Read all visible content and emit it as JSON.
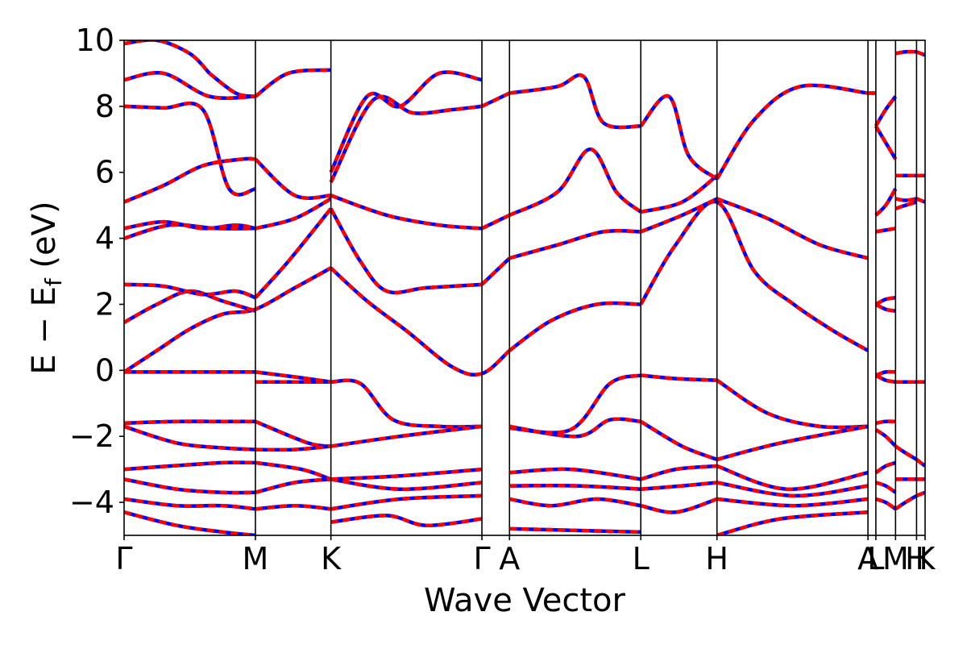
{
  "chart_data": {
    "type": "line",
    "title": "",
    "xlabel": "Wave Vector",
    "ylabel": "E − E",
    "ylabel_sub": "f",
    "ylabel_unit": " (eV)",
    "ylim": [
      -5,
      10
    ],
    "xlim": [
      0,
      12.2
    ],
    "yticks": [
      -4,
      -2,
      0,
      2,
      4,
      6,
      8,
      10
    ],
    "ytick_labels": [
      "−4",
      "−2",
      "0",
      "2",
      "4",
      "6",
      "8",
      "10"
    ],
    "kpoints": [
      {
        "label": "Γ",
        "x": 0.0
      },
      {
        "label": "M",
        "x": 2.0
      },
      {
        "label": "K",
        "x": 3.15
      },
      {
        "label": "Γ",
        "x": 5.45
      },
      {
        "label": "A",
        "x": 5.87
      },
      {
        "label": "L",
        "x": 7.87
      },
      {
        "label": "H",
        "x": 9.03
      },
      {
        "label": "A",
        "x": 11.33
      },
      {
        "label": "L",
        "x": 11.45
      },
      {
        "label": "M",
        "x": 11.75
      },
      {
        "label": "H",
        "x": 12.07
      },
      {
        "label": "K",
        "x": 12.2
      }
    ],
    "series_styles": [
      {
        "color": "#0000ff",
        "style": "solid"
      },
      {
        "color": "#ff0000",
        "style": "dashed"
      }
    ],
    "bands": [
      {
        "x": [
          0,
          0.5,
          1,
          1.5,
          2,
          2.6,
          3.15
        ],
        "y": [
          -0.05,
          0.6,
          1.25,
          1.7,
          1.85,
          2.5,
          3.1
        ]
      },
      {
        "x": [
          3.15,
          3.7,
          4.3,
          5.0,
          5.45,
          5.87
        ],
        "y": [
          3.1,
          2.1,
          1.2,
          0.1,
          -0.1,
          0.6
        ]
      },
      {
        "x": [
          5.87,
          6.5,
          7.2,
          7.87
        ],
        "y": [
          0.6,
          1.5,
          2.0,
          2.0
        ]
      },
      {
        "x": [
          7.87,
          8.4,
          9.03,
          9.6,
          10.2,
          10.8,
          11.33
        ],
        "y": [
          2.0,
          3.8,
          5.1,
          3.0,
          2.0,
          1.2,
          0.6
        ]
      },
      {
        "x": [
          0,
          0.5,
          1,
          1.5,
          2
        ],
        "y": [
          1.45,
          2.0,
          2.4,
          2.1,
          1.8
        ]
      },
      {
        "x": [
          0,
          0.6,
          1.2,
          1.7,
          2
        ],
        "y": [
          2.6,
          2.55,
          2.3,
          2.4,
          2.2
        ]
      },
      {
        "x": [
          2,
          2.5,
          3.15
        ],
        "y": [
          2.2,
          3.3,
          4.9
        ]
      },
      {
        "x": [
          3.15,
          3.6,
          4.0,
          4.6,
          5.45
        ],
        "y": [
          4.9,
          3.3,
          2.4,
          2.5,
          2.6
        ]
      },
      {
        "x": [
          5.45,
          5.87
        ],
        "y": [
          2.6,
          3.4
        ]
      },
      {
        "x": [
          5.87,
          6.6,
          7.3,
          7.87
        ],
        "y": [
          3.4,
          3.8,
          4.2,
          4.2
        ]
      },
      {
        "x": [
          7.87,
          8.5,
          9.03
        ],
        "y": [
          4.2,
          4.7,
          5.2
        ]
      },
      {
        "x": [
          9.03,
          9.8,
          10.6,
          11.33
        ],
        "y": [
          5.2,
          4.6,
          3.8,
          3.4
        ]
      },
      {
        "x": [
          0,
          0.7,
          1.4,
          2
        ],
        "y": [
          4.0,
          4.4,
          4.3,
          4.3
        ]
      },
      {
        "x": [
          0,
          0.6,
          1.2,
          1.7,
          2
        ],
        "y": [
          4.3,
          4.5,
          4.3,
          4.4,
          4.3
        ]
      },
      {
        "x": [
          2,
          2.6,
          3.15
        ],
        "y": [
          4.3,
          4.6,
          5.2
        ]
      },
      {
        "x": [
          0,
          0.6,
          1.2,
          1.8,
          2
        ],
        "y": [
          5.1,
          5.6,
          6.2,
          6.4,
          6.4
        ]
      },
      {
        "x": [
          2,
          2.6,
          3.15
        ],
        "y": [
          6.4,
          5.3,
          5.3
        ]
      },
      {
        "x": [
          3.15,
          4.0,
          4.8,
          5.45
        ],
        "y": [
          5.3,
          4.7,
          4.4,
          4.3
        ]
      },
      {
        "x": [
          5.45,
          5.87
        ],
        "y": [
          4.3,
          4.7
        ]
      },
      {
        "x": [
          5.87,
          6.6,
          7.1,
          7.5,
          7.87
        ],
        "y": [
          4.7,
          5.4,
          6.7,
          5.4,
          4.8
        ]
      },
      {
        "x": [
          7.87,
          8.5,
          9.03
        ],
        "y": [
          4.8,
          5.1,
          5.9
        ]
      },
      {
        "x": [
          0,
          0.6,
          1.2,
          1.6,
          2
        ],
        "y": [
          8.0,
          7.95,
          7.9,
          5.5,
          5.5
        ]
      },
      {
        "x": [
          0,
          0.6,
          1.3,
          2
        ],
        "y": [
          8.8,
          9.0,
          8.3,
          8.3
        ]
      },
      {
        "x": [
          2,
          2.5,
          3.15
        ],
        "y": [
          8.3,
          9.0,
          9.1
        ]
      },
      {
        "x": [
          3.15,
          3.8,
          4.4,
          5.0,
          5.45
        ],
        "y": [
          5.7,
          8.2,
          7.8,
          7.9,
          8.0
        ]
      },
      {
        "x": [
          3.15,
          3.7,
          4.2,
          4.8,
          5.45
        ],
        "y": [
          6.0,
          8.3,
          8.0,
          9.0,
          8.8
        ]
      },
      {
        "x": [
          5.45,
          5.87
        ],
        "y": [
          8.0,
          8.4
        ]
      },
      {
        "x": [
          5.87,
          6.6,
          7.0,
          7.3,
          7.87
        ],
        "y": [
          8.4,
          8.6,
          8.9,
          7.5,
          7.4
        ]
      },
      {
        "x": [
          7.87,
          8.3,
          8.6,
          9.03
        ],
        "y": [
          7.4,
          8.3,
          6.5,
          5.8
        ]
      },
      {
        "x": [
          9.03,
          9.6,
          10.3,
          11.33
        ],
        "y": [
          5.8,
          7.6,
          8.6,
          8.4
        ]
      },
      {
        "x": [
          0,
          0.5,
          1.0,
          1.3
        ],
        "y": [
          9.9,
          10.0,
          9.6,
          9.0
        ]
      },
      {
        "x": [
          1.3,
          1.7,
          2.0
        ],
        "y": [
          9.0,
          8.4,
          8.3
        ]
      },
      {
        "x": [
          0,
          0.6,
          1.2,
          1.6,
          2
        ],
        "y": [
          -0.05,
          -0.05,
          -0.05,
          -0.05,
          -0.05
        ]
      },
      {
        "x": [
          2,
          2.6,
          3.15
        ],
        "y": [
          -0.05,
          -0.2,
          -0.35
        ]
      },
      {
        "x": [
          2,
          2.6,
          3.15
        ],
        "y": [
          -0.35,
          -0.35,
          -0.35
        ]
      },
      {
        "x": [
          3.15,
          3.6,
          4.1,
          4.8,
          5.45
        ],
        "y": [
          -0.35,
          -0.4,
          -1.5,
          -1.7,
          -1.7
        ]
      },
      {
        "x": [
          5.87,
          6.8,
          7.4,
          7.87
        ],
        "y": [
          -1.75,
          -1.8,
          -0.4,
          -0.15
        ]
      },
      {
        "x": [
          7.87,
          8.4,
          9.03
        ],
        "y": [
          -0.15,
          -0.25,
          -0.3
        ]
      },
      {
        "x": [
          9.03,
          9.8,
          10.6,
          11.33
        ],
        "y": [
          -0.3,
          -1.3,
          -1.7,
          -1.7
        ]
      },
      {
        "x": [
          0,
          0.8,
          1.5,
          2
        ],
        "y": [
          -1.6,
          -1.55,
          -1.55,
          -1.55
        ]
      },
      {
        "x": [
          2,
          2.8,
          3.15
        ],
        "y": [
          -1.55,
          -2.2,
          -2.3
        ]
      },
      {
        "x": [
          3.15,
          4.2,
          5.45
        ],
        "y": [
          -2.3,
          -2.0,
          -1.7
        ]
      },
      {
        "x": [
          5.87,
          6.9,
          7.4,
          7.87
        ],
        "y": [
          -1.7,
          -2.0,
          -1.5,
          -1.55
        ]
      },
      {
        "x": [
          7.87,
          8.5,
          9.03
        ],
        "y": [
          -1.55,
          -2.3,
          -2.7
        ]
      },
      {
        "x": [
          9.03,
          10.0,
          11.33
        ],
        "y": [
          -2.7,
          -2.2,
          -1.7
        ]
      },
      {
        "x": [
          0,
          0.8,
          1.5,
          2
        ],
        "y": [
          -1.7,
          -2.2,
          -2.35,
          -2.4
        ]
      },
      {
        "x": [
          2,
          2.6,
          3.15
        ],
        "y": [
          -2.4,
          -2.4,
          -2.3
        ]
      },
      {
        "x": [
          0,
          0.7,
          1.5,
          2
        ],
        "y": [
          -3.0,
          -2.9,
          -2.8,
          -2.8
        ]
      },
      {
        "x": [
          2,
          2.7,
          3.15
        ],
        "y": [
          -2.8,
          -3.0,
          -3.3
        ]
      },
      {
        "x": [
          3.15,
          4.2,
          5.45
        ],
        "y": [
          -3.3,
          -3.2,
          -3.0
        ]
      },
      {
        "x": [
          5.87,
          6.8,
          7.87
        ],
        "y": [
          -3.1,
          -3.0,
          -3.3
        ]
      },
      {
        "x": [
          7.87,
          8.4,
          9.03
        ],
        "y": [
          -3.3,
          -3.0,
          -2.9
        ]
      },
      {
        "x": [
          9.03,
          10.1,
          11.33
        ],
        "y": [
          -2.9,
          -3.6,
          -3.1
        ]
      },
      {
        "x": [
          0,
          0.8,
          1.5,
          2
        ],
        "y": [
          -3.3,
          -3.6,
          -3.7,
          -3.7
        ]
      },
      {
        "x": [
          2,
          2.6,
          3.15
        ],
        "y": [
          -3.7,
          -3.4,
          -3.3
        ]
      },
      {
        "x": [
          3.15,
          4.2,
          5.45
        ],
        "y": [
          -3.3,
          -3.6,
          -3.4
        ]
      },
      {
        "x": [
          5.87,
          6.9,
          7.87
        ],
        "y": [
          -3.5,
          -3.5,
          -3.6
        ]
      },
      {
        "x": [
          7.87,
          8.5,
          9.03
        ],
        "y": [
          -3.6,
          -3.5,
          -3.4
        ]
      },
      {
        "x": [
          9.03,
          10.2,
          11.33
        ],
        "y": [
          -3.4,
          -3.8,
          -3.5
        ]
      },
      {
        "x": [
          0,
          0.8,
          1.5,
          2
        ],
        "y": [
          -3.9,
          -4.1,
          -4.1,
          -4.2
        ]
      },
      {
        "x": [
          2,
          2.6,
          3.15
        ],
        "y": [
          -4.2,
          -4.1,
          -4.2
        ]
      },
      {
        "x": [
          3.15,
          4.2,
          5.45
        ],
        "y": [
          -4.2,
          -3.9,
          -3.8
        ]
      },
      {
        "x": [
          5.87,
          6.5,
          7.2,
          7.87
        ],
        "y": [
          -3.9,
          -4.1,
          -3.9,
          -4.1
        ]
      },
      {
        "x": [
          7.87,
          8.4,
          9.03
        ],
        "y": [
          -4.1,
          -4.3,
          -3.9
        ]
      },
      {
        "x": [
          9.03,
          10.2,
          11.33
        ],
        "y": [
          -3.9,
          -4.1,
          -3.9
        ]
      },
      {
        "x": [
          0,
          0.8,
          1.5,
          2
        ],
        "y": [
          -4.3,
          -4.7,
          -4.9,
          -5.0
        ]
      },
      {
        "x": [
          3.15,
          4.0,
          4.6,
          5.45
        ],
        "y": [
          -4.6,
          -4.4,
          -4.7,
          -4.5
        ]
      },
      {
        "x": [
          5.87,
          7.87
        ],
        "y": [
          -4.8,
          -4.9
        ]
      },
      {
        "x": [
          9.03,
          10.0,
          11.33
        ],
        "y": [
          -5.0,
          -4.5,
          -4.3
        ]
      },
      {
        "x": [
          11.33,
          11.45
        ],
        "y": [
          8.4,
          8.4
        ]
      },
      {
        "x": [
          11.45,
          11.6,
          11.75
        ],
        "y": [
          7.4,
          7.9,
          8.3
        ]
      },
      {
        "x": [
          11.45,
          11.6,
          11.75
        ],
        "y": [
          7.4,
          6.9,
          6.4
        ]
      },
      {
        "x": [
          11.45,
          11.6,
          11.75
        ],
        "y": [
          4.2,
          4.25,
          4.3
        ]
      },
      {
        "x": [
          11.45,
          11.6,
          11.75
        ],
        "y": [
          4.7,
          5.0,
          5.5
        ]
      },
      {
        "x": [
          11.45,
          11.6,
          11.75
        ],
        "y": [
          2.0,
          2.15,
          2.2
        ]
      },
      {
        "x": [
          11.45,
          11.6,
          11.75
        ],
        "y": [
          2.0,
          1.85,
          1.8
        ]
      },
      {
        "x": [
          11.45,
          11.6,
          11.75
        ],
        "y": [
          -0.15,
          -0.05,
          -0.05
        ]
      },
      {
        "x": [
          11.45,
          11.6,
          11.75
        ],
        "y": [
          -0.15,
          -0.3,
          -0.35
        ]
      },
      {
        "x": [
          11.45,
          11.6,
          11.75
        ],
        "y": [
          -1.6,
          -1.55,
          -1.55
        ]
      },
      {
        "x": [
          11.45,
          11.6,
          11.75
        ],
        "y": [
          -1.8,
          -2.0,
          -2.3
        ]
      },
      {
        "x": [
          11.45,
          11.6,
          11.75
        ],
        "y": [
          -3.1,
          -2.9,
          -2.8
        ]
      },
      {
        "x": [
          11.45,
          11.6,
          11.75
        ],
        "y": [
          -3.4,
          -3.5,
          -3.7
        ]
      },
      {
        "x": [
          11.45,
          11.6,
          11.75
        ],
        "y": [
          -3.9,
          -4.0,
          -4.2
        ]
      },
      {
        "x": [
          11.75,
          11.9,
          12.07
        ],
        "y": [
          9.6,
          9.65,
          9.65
        ]
      },
      {
        "x": [
          11.75,
          11.9,
          12.07
        ],
        "y": [
          5.9,
          5.9,
          5.9
        ]
      },
      {
        "x": [
          11.75,
          11.9,
          12.07
        ],
        "y": [
          5.2,
          5.15,
          5.2
        ]
      },
      {
        "x": [
          11.75,
          11.9,
          12.07
        ],
        "y": [
          4.9,
          5.0,
          5.1
        ]
      },
      {
        "x": [
          11.75,
          11.9,
          12.07
        ],
        "y": [
          -0.35,
          -0.35,
          -0.35
        ]
      },
      {
        "x": [
          11.75,
          11.9,
          12.07
        ],
        "y": [
          -2.3,
          -2.5,
          -2.7
        ]
      },
      {
        "x": [
          11.75,
          11.9,
          12.07
        ],
        "y": [
          -3.3,
          -3.3,
          -3.3
        ]
      },
      {
        "x": [
          11.75,
          11.9,
          12.07
        ],
        "y": [
          -4.2,
          -4.0,
          -3.8
        ]
      },
      {
        "x": [
          12.07,
          12.2
        ],
        "y": [
          9.65,
          9.55
        ]
      },
      {
        "x": [
          12.07,
          12.2
        ],
        "y": [
          5.9,
          5.9
        ]
      },
      {
        "x": [
          12.07,
          12.2
        ],
        "y": [
          5.2,
          5.1
        ]
      },
      {
        "x": [
          12.07,
          12.2
        ],
        "y": [
          -0.35,
          -0.35
        ]
      },
      {
        "x": [
          12.07,
          12.2
        ],
        "y": [
          -2.7,
          -2.9
        ]
      },
      {
        "x": [
          12.07,
          12.2
        ],
        "y": [
          -3.3,
          -3.3
        ]
      },
      {
        "x": [
          12.07,
          12.2
        ],
        "y": [
          -3.8,
          -3.7
        ]
      }
    ]
  }
}
